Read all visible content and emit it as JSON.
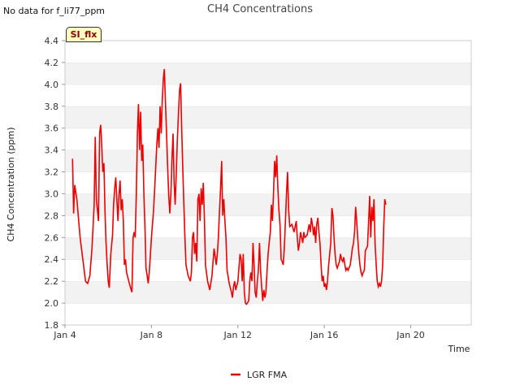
{
  "notice": "No data for f_li77_ppm",
  "badge": "SI_flx",
  "chart_data": {
    "type": "line",
    "title": "CH4 Concentrations",
    "xlabel": "Time",
    "ylabel": "CH4 Concentration (ppm)",
    "xlim": [
      4,
      22.8
    ],
    "ylim": [
      1.8,
      4.4
    ],
    "yticks": [
      1.8,
      2.0,
      2.2,
      2.4,
      2.6,
      2.8,
      3.0,
      3.2,
      3.4,
      3.6,
      3.8,
      4.0,
      4.2,
      4.4
    ],
    "xticks": [
      {
        "value": 4,
        "label": "Jan 4"
      },
      {
        "value": 8,
        "label": "Jan 8"
      },
      {
        "value": 12,
        "label": "Jan 12"
      },
      {
        "value": 16,
        "label": "Jan 16"
      },
      {
        "value": 20,
        "label": "Jan 20"
      }
    ],
    "legend": "bottom-center",
    "series": [
      {
        "name": "LGR FMA",
        "color": "#ee0000",
        "points": [
          [
            4.35,
            3.32
          ],
          [
            4.4,
            2.82
          ],
          [
            4.45,
            3.08
          ],
          [
            4.55,
            2.95
          ],
          [
            4.7,
            2.6
          ],
          [
            4.85,
            2.36
          ],
          [
            4.95,
            2.2
          ],
          [
            5.05,
            2.18
          ],
          [
            5.15,
            2.25
          ],
          [
            5.25,
            2.5
          ],
          [
            5.35,
            2.9
          ],
          [
            5.4,
            3.52
          ],
          [
            5.45,
            2.95
          ],
          [
            5.55,
            2.75
          ],
          [
            5.6,
            3.55
          ],
          [
            5.65,
            3.63
          ],
          [
            5.7,
            3.45
          ],
          [
            5.75,
            3.2
          ],
          [
            5.8,
            3.28
          ],
          [
            5.85,
            2.85
          ],
          [
            5.9,
            2.55
          ],
          [
            5.95,
            2.35
          ],
          [
            6.0,
            2.2
          ],
          [
            6.05,
            2.14
          ],
          [
            6.12,
            2.45
          ],
          [
            6.2,
            2.62
          ],
          [
            6.25,
            2.9
          ],
          [
            6.3,
            3.05
          ],
          [
            6.35,
            3.15
          ],
          [
            6.4,
            2.95
          ],
          [
            6.45,
            2.75
          ],
          [
            6.5,
            3.0
          ],
          [
            6.55,
            3.12
          ],
          [
            6.6,
            2.85
          ],
          [
            6.65,
            2.95
          ],
          [
            6.7,
            2.75
          ],
          [
            6.75,
            2.35
          ],
          [
            6.8,
            2.4
          ],
          [
            6.85,
            2.28
          ],
          [
            6.95,
            2.2
          ],
          [
            7.05,
            2.13
          ],
          [
            7.1,
            2.1
          ],
          [
            7.15,
            2.6
          ],
          [
            7.2,
            2.65
          ],
          [
            7.25,
            2.6
          ],
          [
            7.3,
            3.0
          ],
          [
            7.35,
            3.55
          ],
          [
            7.4,
            3.82
          ],
          [
            7.45,
            3.4
          ],
          [
            7.5,
            3.75
          ],
          [
            7.55,
            3.3
          ],
          [
            7.6,
            3.45
          ],
          [
            7.65,
            3.0
          ],
          [
            7.7,
            2.7
          ],
          [
            7.75,
            2.32
          ],
          [
            7.8,
            2.25
          ],
          [
            7.85,
            2.18
          ],
          [
            7.9,
            2.28
          ],
          [
            8.0,
            2.6
          ],
          [
            8.1,
            2.85
          ],
          [
            8.15,
            3.05
          ],
          [
            8.2,
            3.25
          ],
          [
            8.25,
            3.45
          ],
          [
            8.3,
            3.6
          ],
          [
            8.35,
            3.42
          ],
          [
            8.4,
            3.8
          ],
          [
            8.45,
            3.55
          ],
          [
            8.5,
            3.85
          ],
          [
            8.55,
            4.05
          ],
          [
            8.6,
            4.14
          ],
          [
            8.65,
            3.82
          ],
          [
            8.7,
            3.55
          ],
          [
            8.75,
            3.25
          ],
          [
            8.8,
            2.98
          ],
          [
            8.85,
            2.82
          ],
          [
            8.9,
            3.0
          ],
          [
            8.95,
            3.3
          ],
          [
            9.0,
            3.55
          ],
          [
            9.05,
            3.1
          ],
          [
            9.1,
            2.9
          ],
          [
            9.15,
            3.2
          ],
          [
            9.2,
            3.5
          ],
          [
            9.25,
            3.72
          ],
          [
            9.3,
            3.95
          ],
          [
            9.35,
            4.01
          ],
          [
            9.4,
            3.6
          ],
          [
            9.45,
            3.25
          ],
          [
            9.5,
            2.9
          ],
          [
            9.55,
            2.6
          ],
          [
            9.6,
            2.35
          ],
          [
            9.7,
            2.25
          ],
          [
            9.8,
            2.2
          ],
          [
            9.85,
            2.28
          ],
          [
            9.9,
            2.6
          ],
          [
            9.95,
            2.65
          ],
          [
            10.0,
            2.45
          ],
          [
            10.05,
            2.55
          ],
          [
            10.1,
            2.38
          ],
          [
            10.15,
            2.95
          ],
          [
            10.2,
            3.0
          ],
          [
            10.25,
            2.75
          ],
          [
            10.3,
            3.05
          ],
          [
            10.35,
            2.9
          ],
          [
            10.4,
            3.1
          ],
          [
            10.45,
            2.8
          ],
          [
            10.5,
            2.35
          ],
          [
            10.6,
            2.2
          ],
          [
            10.7,
            2.12
          ],
          [
            10.8,
            2.25
          ],
          [
            10.85,
            2.38
          ],
          [
            10.9,
            2.5
          ],
          [
            11.0,
            2.35
          ],
          [
            11.05,
            2.45
          ],
          [
            11.1,
            2.6
          ],
          [
            11.15,
            2.85
          ],
          [
            11.2,
            3.05
          ],
          [
            11.25,
            3.3
          ],
          [
            11.3,
            2.8
          ],
          [
            11.35,
            2.95
          ],
          [
            11.4,
            2.75
          ],
          [
            11.45,
            2.6
          ],
          [
            11.5,
            2.3
          ],
          [
            11.6,
            2.18
          ],
          [
            11.7,
            2.1
          ],
          [
            11.75,
            2.05
          ],
          [
            11.8,
            2.15
          ],
          [
            11.85,
            2.2
          ],
          [
            11.9,
            2.12
          ],
          [
            12.0,
            2.2
          ],
          [
            12.1,
            2.45
          ],
          [
            12.15,
            2.4
          ],
          [
            12.2,
            2.2
          ],
          [
            12.25,
            2.45
          ],
          [
            12.3,
            2.1
          ],
          [
            12.35,
            2.0
          ],
          [
            12.4,
            1.99
          ],
          [
            12.5,
            2.02
          ],
          [
            12.55,
            2.2
          ],
          [
            12.6,
            2.28
          ],
          [
            12.65,
            2.2
          ],
          [
            12.7,
            2.55
          ],
          [
            12.75,
            2.35
          ],
          [
            12.8,
            2.1
          ],
          [
            12.85,
            2.05
          ],
          [
            12.9,
            2.2
          ],
          [
            12.95,
            2.3
          ],
          [
            13.0,
            2.55
          ],
          [
            13.05,
            2.3
          ],
          [
            13.1,
            2.15
          ],
          [
            13.15,
            2.02
          ],
          [
            13.2,
            2.12
          ],
          [
            13.25,
            2.05
          ],
          [
            13.3,
            2.1
          ],
          [
            13.35,
            2.3
          ],
          [
            13.4,
            2.45
          ],
          [
            13.45,
            2.55
          ],
          [
            13.5,
            2.65
          ],
          [
            13.55,
            2.9
          ],
          [
            13.6,
            2.75
          ],
          [
            13.65,
            3.0
          ],
          [
            13.7,
            3.3
          ],
          [
            13.75,
            3.15
          ],
          [
            13.8,
            3.35
          ],
          [
            13.85,
            3.05
          ],
          [
            13.9,
            2.85
          ],
          [
            13.95,
            2.72
          ],
          [
            14.0,
            2.4
          ],
          [
            14.05,
            2.38
          ],
          [
            14.1,
            2.35
          ],
          [
            14.15,
            2.5
          ],
          [
            14.2,
            2.75
          ],
          [
            14.25,
            3.0
          ],
          [
            14.3,
            3.2
          ],
          [
            14.35,
            2.85
          ],
          [
            14.4,
            2.7
          ],
          [
            14.5,
            2.72
          ],
          [
            14.6,
            2.65
          ],
          [
            14.7,
            2.75
          ],
          [
            14.75,
            2.6
          ],
          [
            14.8,
            2.48
          ],
          [
            14.85,
            2.55
          ],
          [
            14.9,
            2.65
          ],
          [
            15.0,
            2.55
          ],
          [
            15.05,
            2.65
          ],
          [
            15.1,
            2.6
          ],
          [
            15.2,
            2.62
          ],
          [
            15.3,
            2.72
          ],
          [
            15.35,
            2.65
          ],
          [
            15.4,
            2.78
          ],
          [
            15.45,
            2.72
          ],
          [
            15.5,
            2.62
          ],
          [
            15.55,
            2.7
          ],
          [
            15.6,
            2.55
          ],
          [
            15.65,
            2.72
          ],
          [
            15.7,
            2.78
          ],
          [
            15.75,
            2.65
          ],
          [
            15.8,
            2.55
          ],
          [
            15.85,
            2.35
          ],
          [
            15.9,
            2.2
          ],
          [
            15.95,
            2.25
          ],
          [
            16.0,
            2.15
          ],
          [
            16.05,
            2.18
          ],
          [
            16.1,
            2.12
          ],
          [
            16.15,
            2.2
          ],
          [
            16.2,
            2.35
          ],
          [
            16.3,
            2.55
          ],
          [
            16.35,
            2.87
          ],
          [
            16.4,
            2.8
          ],
          [
            16.45,
            2.6
          ],
          [
            16.5,
            2.45
          ],
          [
            16.55,
            2.35
          ],
          [
            16.6,
            2.32
          ],
          [
            16.7,
            2.38
          ],
          [
            16.75,
            2.45
          ],
          [
            16.8,
            2.4
          ],
          [
            16.85,
            2.38
          ],
          [
            16.9,
            2.42
          ],
          [
            16.95,
            2.35
          ],
          [
            17.0,
            2.3
          ],
          [
            17.05,
            2.32
          ],
          [
            17.1,
            2.3
          ],
          [
            17.2,
            2.35
          ],
          [
            17.3,
            2.5
          ],
          [
            17.35,
            2.55
          ],
          [
            17.4,
            2.65
          ],
          [
            17.45,
            2.88
          ],
          [
            17.5,
            2.75
          ],
          [
            17.55,
            2.58
          ],
          [
            17.6,
            2.45
          ],
          [
            17.65,
            2.35
          ],
          [
            17.7,
            2.28
          ],
          [
            17.75,
            2.25
          ],
          [
            17.8,
            2.28
          ],
          [
            17.85,
            2.3
          ],
          [
            17.9,
            2.48
          ],
          [
            18.0,
            2.52
          ],
          [
            18.05,
            2.75
          ],
          [
            18.1,
            2.98
          ],
          [
            18.15,
            2.6
          ],
          [
            18.2,
            2.88
          ],
          [
            18.25,
            2.75
          ],
          [
            18.3,
            2.95
          ],
          [
            18.35,
            2.55
          ],
          [
            18.4,
            2.35
          ],
          [
            18.45,
            2.2
          ],
          [
            18.5,
            2.15
          ],
          [
            18.55,
            2.18
          ],
          [
            18.6,
            2.15
          ],
          [
            18.65,
            2.2
          ],
          [
            18.7,
            2.35
          ],
          [
            18.75,
            2.7
          ],
          [
            18.8,
            2.95
          ],
          [
            18.85,
            2.9
          ]
        ]
      }
    ]
  }
}
